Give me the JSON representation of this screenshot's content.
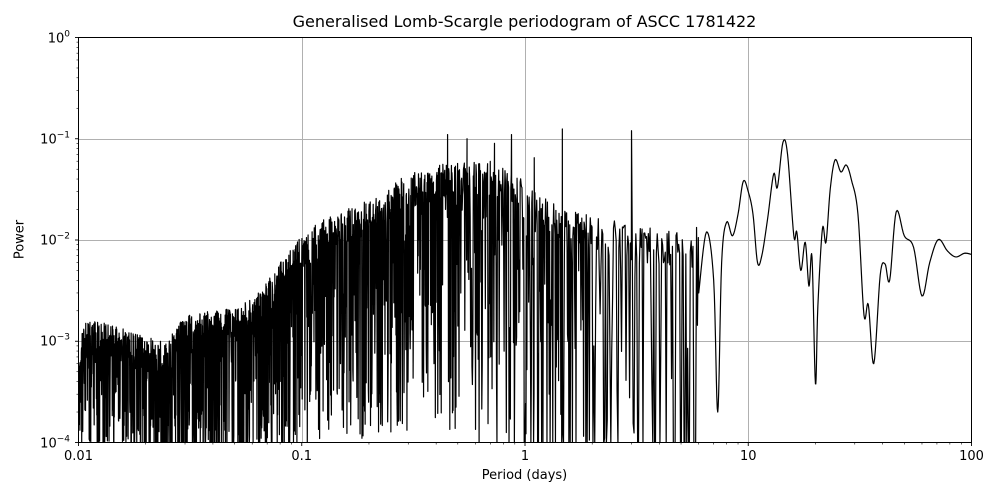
{
  "chart_data": {
    "type": "line",
    "title": "Generalised Lomb-Scargle periodogram of ASCC 1781422",
    "xlabel": "Period (days)",
    "ylabel": "Power",
    "xscale": "log",
    "yscale": "log",
    "xlim": [
      0.01,
      100
    ],
    "ylim": [
      0.0001,
      1
    ],
    "grid": true,
    "legend": null,
    "line_color": "#000000",
    "grid_color": "#b0b0b0",
    "x_ticks": [
      {
        "value": 0.01,
        "label": "0.01"
      },
      {
        "value": 0.1,
        "label": "0.1"
      },
      {
        "value": 1,
        "label": "1"
      },
      {
        "value": 10,
        "label": "10"
      },
      {
        "value": 100,
        "label": "100"
      }
    ],
    "y_ticks": [
      {
        "value": 1,
        "base": "10",
        "exp": "0"
      },
      {
        "value": 0.1,
        "base": "10",
        "exp": "−1"
      },
      {
        "value": 0.01,
        "base": "10",
        "exp": "−2"
      },
      {
        "value": 0.001,
        "base": "10",
        "exp": "−3"
      },
      {
        "value": 0.0001,
        "base": "10",
        "exp": "−4"
      }
    ],
    "envelope_upper": [
      [
        0.01,
        0.0006
      ],
      [
        0.0105,
        0.0015
      ],
      [
        0.012,
        0.0016
      ],
      [
        0.015,
        0.0014
      ],
      [
        0.02,
        0.0011
      ],
      [
        0.025,
        0.001
      ],
      [
        0.03,
        0.0018
      ],
      [
        0.04,
        0.002
      ],
      [
        0.05,
        0.0022
      ],
      [
        0.06,
        0.0026
      ],
      [
        0.07,
        0.004
      ],
      [
        0.08,
        0.006
      ],
      [
        0.1,
        0.011
      ],
      [
        0.12,
        0.015
      ],
      [
        0.15,
        0.02
      ],
      [
        0.2,
        0.025
      ],
      [
        0.25,
        0.035
      ],
      [
        0.3,
        0.045
      ],
      [
        0.4,
        0.055
      ],
      [
        0.5,
        0.06
      ],
      [
        0.7,
        0.06
      ],
      [
        0.9,
        0.05
      ],
      [
        1.0,
        0.035
      ],
      [
        1.3,
        0.025
      ],
      [
        2.0,
        0.018
      ],
      [
        3.0,
        0.014
      ],
      [
        5.0,
        0.012
      ],
      [
        7.0,
        0.015
      ]
    ],
    "notable_peaks": [
      {
        "period": 1.47,
        "power": 0.125
      },
      {
        "period": 3.0,
        "power": 0.12
      },
      {
        "period": 0.45,
        "power": 0.11
      },
      {
        "period": 0.55,
        "power": 0.1
      },
      {
        "period": 0.73,
        "power": 0.09
      },
      {
        "period": 0.87,
        "power": 0.11
      },
      {
        "period": 1.1,
        "power": 0.065
      },
      {
        "period": 14.3,
        "power": 0.092
      },
      {
        "period": 24.5,
        "power": 0.062
      },
      {
        "period": 27.5,
        "power": 0.055
      },
      {
        "period": 46.0,
        "power": 0.019
      },
      {
        "period": 71.0,
        "power": 0.01
      }
    ],
    "smooth_tail": [
      [
        6.0,
        0.003
      ],
      [
        6.5,
        0.012
      ],
      [
        7.0,
        0.004
      ],
      [
        7.3,
        0.0002
      ],
      [
        7.6,
        0.006
      ],
      [
        8.0,
        0.015
      ],
      [
        8.5,
        0.011
      ],
      [
        9.0,
        0.018
      ],
      [
        9.5,
        0.038
      ],
      [
        10.0,
        0.03
      ],
      [
        10.5,
        0.018
      ],
      [
        11.0,
        0.006
      ],
      [
        11.5,
        0.007
      ],
      [
        12.2,
        0.016
      ],
      [
        13.0,
        0.045
      ],
      [
        13.5,
        0.033
      ],
      [
        14.3,
        0.092
      ],
      [
        15.0,
        0.07
      ],
      [
        16.0,
        0.011
      ],
      [
        16.5,
        0.012
      ],
      [
        17.2,
        0.005
      ],
      [
        18.0,
        0.0095
      ],
      [
        18.7,
        0.0035
      ],
      [
        19.3,
        0.0068
      ],
      [
        20.0,
        0.00038
      ],
      [
        20.5,
        0.0022
      ],
      [
        21.5,
        0.013
      ],
      [
        22.3,
        0.0095
      ],
      [
        23.3,
        0.032
      ],
      [
        24.5,
        0.062
      ],
      [
        26.0,
        0.047
      ],
      [
        27.5,
        0.055
      ],
      [
        29.0,
        0.039
      ],
      [
        31.0,
        0.018
      ],
      [
        33.0,
        0.0018
      ],
      [
        34.5,
        0.0023
      ],
      [
        36.5,
        0.0006
      ],
      [
        39.0,
        0.0045
      ],
      [
        41.0,
        0.0058
      ],
      [
        43.0,
        0.004
      ],
      [
        46.0,
        0.019
      ],
      [
        50.0,
        0.011
      ],
      [
        55.0,
        0.0085
      ],
      [
        60.0,
        0.0028
      ],
      [
        65.0,
        0.006
      ],
      [
        71.0,
        0.0101
      ],
      [
        78.0,
        0.0078
      ],
      [
        85.0,
        0.0068
      ],
      [
        93.0,
        0.0074
      ],
      [
        100.0,
        0.0072
      ]
    ]
  }
}
